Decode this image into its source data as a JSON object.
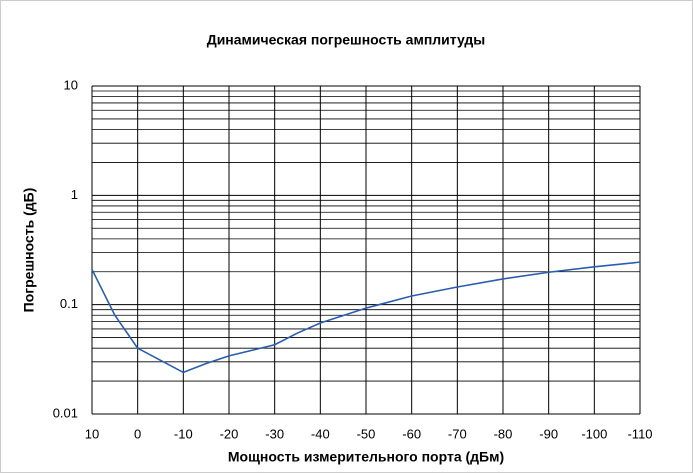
{
  "chart_data": {
    "type": "line",
    "title": "Динамическая погрешность амплитуды",
    "xlabel": "Мощность измерительного порта (дБм)",
    "ylabel": "Погрешность (дБ)",
    "x": [
      10,
      5,
      0,
      -5,
      -10,
      -15,
      -20,
      -30,
      -35,
      -40,
      -50,
      -60,
      -70,
      -80,
      -90,
      -100,
      -110
    ],
    "series": [
      {
        "name": "Погрешность",
        "color": "#2a5db0",
        "values": [
          0.21,
          0.08,
          0.04,
          0.031,
          0.024,
          0.029,
          0.034,
          0.043,
          0.055,
          0.068,
          0.093,
          0.12,
          0.145,
          0.172,
          0.198,
          0.222,
          0.245
        ]
      }
    ],
    "xlim": [
      10,
      -110
    ],
    "xticks": [
      10,
      0,
      -10,
      -20,
      -30,
      -40,
      -50,
      -60,
      -70,
      -80,
      -90,
      -100,
      -110
    ],
    "ylim": [
      0.01,
      10
    ],
    "yticks": [
      0.01,
      0.1,
      1,
      10
    ],
    "ylog": true,
    "grid": true,
    "minor_grid": true,
    "legend": false
  }
}
